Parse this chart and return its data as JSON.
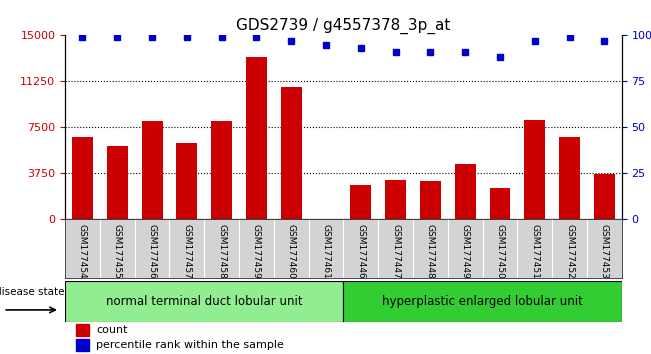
{
  "title": "GDS2739 / g4557378_3p_at",
  "categories": [
    "GSM177454",
    "GSM177455",
    "GSM177456",
    "GSM177457",
    "GSM177458",
    "GSM177459",
    "GSM177460",
    "GSM177461",
    "GSM177446",
    "GSM177447",
    "GSM177448",
    "GSM177449",
    "GSM177450",
    "GSM177451",
    "GSM177452",
    "GSM177453"
  ],
  "bar_values": [
    6700,
    6000,
    8000,
    6200,
    8000,
    13200,
    10800,
    0,
    2800,
    3200,
    3100,
    4500,
    2600,
    8100,
    6700,
    3700
  ],
  "percentile_values": [
    99,
    99,
    99,
    99,
    99,
    99,
    97,
    95,
    93,
    91,
    91,
    91,
    88,
    97,
    99,
    97
  ],
  "bar_color": "#cc0000",
  "dot_color": "#0000cc",
  "ylim_left": [
    0,
    15000
  ],
  "ylim_right": [
    0,
    100
  ],
  "yticks_left": [
    0,
    3750,
    7500,
    11250,
    15000
  ],
  "yticks_right": [
    0,
    25,
    50,
    75,
    100
  ],
  "grid_lines": [
    3750,
    7500,
    11250
  ],
  "group1_label": "normal terminal duct lobular unit",
  "group1_count": 8,
  "group2_label": "hyperplastic enlarged lobular unit",
  "group2_count": 8,
  "disease_state_label": "disease state",
  "legend_bar_label": "count",
  "legend_dot_label": "percentile rank within the sample",
  "group1_color": "#90ee90",
  "group2_color": "#32cd32",
  "background_color": "#ffffff",
  "tick_area_color": "#d3d3d3",
  "title_fontsize": 11,
  "bar_width": 0.6
}
